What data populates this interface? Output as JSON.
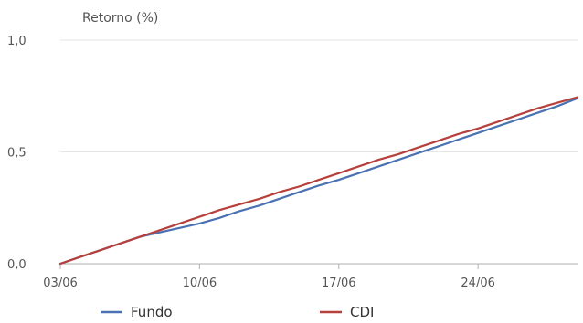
{
  "chart_data": {
    "type": "line",
    "ylabel": "Retorno (%)",
    "ylim": [
      0,
      1.0
    ],
    "yticks": [
      0,
      0.5,
      1.0
    ],
    "ytick_labels": [
      "0,0",
      "0,5",
      "1,0"
    ],
    "xlim": [
      "2025-06-03",
      "2025-06-29"
    ],
    "xticks": [
      "2025-06-03",
      "2025-06-10",
      "2025-06-17",
      "2025-06-24"
    ],
    "xtick_labels": [
      "03/06",
      "10/06",
      "17/06",
      "24/06"
    ],
    "grid": "horizontal",
    "legend": "bottom",
    "series": [
      {
        "name": "Fundo",
        "color": "#4a72b2",
        "x": [
          "2025-06-03",
          "2025-06-04",
          "2025-06-05",
          "2025-06-06",
          "2025-06-07",
          "2025-06-08",
          "2025-06-09",
          "2025-06-10",
          "2025-06-11",
          "2025-06-12",
          "2025-06-13",
          "2025-06-14",
          "2025-06-15",
          "2025-06-16",
          "2025-06-17",
          "2025-06-18",
          "2025-06-19",
          "2025-06-20",
          "2025-06-21",
          "2025-06-22",
          "2025-06-23",
          "2025-06-24",
          "2025-06-25",
          "2025-06-26",
          "2025-06-27",
          "2025-06-28",
          "2025-06-29"
        ],
        "values": [
          0.0,
          0.03,
          0.06,
          0.09,
          0.12,
          0.14,
          0.16,
          0.18,
          0.205,
          0.235,
          0.26,
          0.29,
          0.32,
          0.35,
          0.375,
          0.405,
          0.435,
          0.465,
          0.495,
          0.525,
          0.555,
          0.585,
          0.615,
          0.645,
          0.675,
          0.705,
          0.74
        ]
      },
      {
        "name": "CDI",
        "color": "#b7403c",
        "x": [
          "2025-06-03",
          "2025-06-04",
          "2025-06-05",
          "2025-06-06",
          "2025-06-07",
          "2025-06-08",
          "2025-06-09",
          "2025-06-10",
          "2025-06-11",
          "2025-06-12",
          "2025-06-13",
          "2025-06-14",
          "2025-06-15",
          "2025-06-16",
          "2025-06-17",
          "2025-06-18",
          "2025-06-19",
          "2025-06-20",
          "2025-06-21",
          "2025-06-22",
          "2025-06-23",
          "2025-06-24",
          "2025-06-25",
          "2025-06-26",
          "2025-06-27",
          "2025-06-28",
          "2025-06-29"
        ],
        "values": [
          0.0,
          0.03,
          0.06,
          0.09,
          0.12,
          0.15,
          0.18,
          0.21,
          0.24,
          0.265,
          0.29,
          0.32,
          0.345,
          0.375,
          0.405,
          0.435,
          0.465,
          0.49,
          0.52,
          0.55,
          0.58,
          0.605,
          0.635,
          0.665,
          0.695,
          0.72,
          0.745
        ]
      }
    ]
  }
}
